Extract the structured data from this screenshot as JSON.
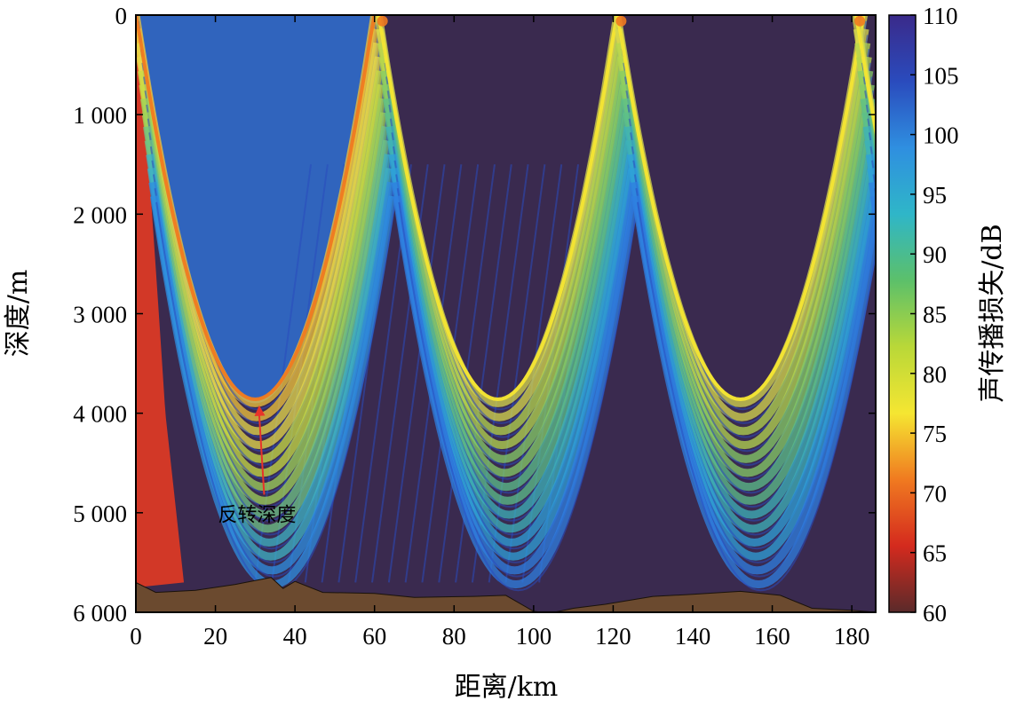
{
  "chart_data": {
    "type": "heatmap",
    "title": "",
    "xlabel": "距离/km",
    "ylabel": "深度/m",
    "colorbar_label": "声传播损失/dB",
    "xlim": [
      0,
      186
    ],
    "ylim": [
      6000,
      0
    ],
    "y_reversed": true,
    "x_ticks": [
      {
        "value": 0,
        "label": "0"
      },
      {
        "value": 20,
        "label": "20"
      },
      {
        "value": 40,
        "label": "40"
      },
      {
        "value": 60,
        "label": "60"
      },
      {
        "value": 80,
        "label": "80"
      },
      {
        "value": 100,
        "label": "100"
      },
      {
        "value": 120,
        "label": "120"
      },
      {
        "value": 140,
        "label": "140"
      },
      {
        "value": 160,
        "label": "160"
      },
      {
        "value": 180,
        "label": "180"
      }
    ],
    "y_ticks": [
      {
        "value": 0,
        "label": "0"
      },
      {
        "value": 1000,
        "label": "1 000"
      },
      {
        "value": 2000,
        "label": "2 000"
      },
      {
        "value": 3000,
        "label": "3 000"
      },
      {
        "value": 4000,
        "label": "4 000"
      },
      {
        "value": 5000,
        "label": "5 000"
      },
      {
        "value": 6000,
        "label": "6 000"
      }
    ],
    "colorbar": {
      "range": [
        60,
        110
      ],
      "ticks": [
        {
          "value": 60,
          "label": "60"
        },
        {
          "value": 65,
          "label": "65"
        },
        {
          "value": 70,
          "label": "70"
        },
        {
          "value": 75,
          "label": "75"
        },
        {
          "value": 80,
          "label": "80"
        },
        {
          "value": 85,
          "label": "85"
        },
        {
          "value": 90,
          "label": "90"
        },
        {
          "value": 95,
          "label": "95"
        },
        {
          "value": 100,
          "label": "100"
        },
        {
          "value": 105,
          "label": "105"
        },
        {
          "value": 110,
          "label": "110"
        }
      ],
      "colormap": [
        "#5a2a2a",
        "#d42a1e",
        "#f07a20",
        "#f5e632",
        "#b9d838",
        "#5cc06a",
        "#2fb6c8",
        "#2f8fe0",
        "#2a4bbd",
        "#3a2a8a"
      ]
    },
    "shadow_zone_color": "#3a2a4f",
    "seabed_color": "#6b4a2f",
    "convergence_zones": [
      {
        "surface_range_km": 0,
        "turning_range_km": 30,
        "turning_depth_m": 3900
      },
      {
        "surface_range_km": 61,
        "turning_range_km": 91,
        "turning_depth_m": 3900
      },
      {
        "surface_range_km": 121,
        "turning_range_km": 152,
        "turning_depth_m": 3900
      },
      {
        "surface_range_km": 181
      }
    ],
    "seabed_profile": [
      {
        "x": 0,
        "y": 5700
      },
      {
        "x": 5,
        "y": 5800
      },
      {
        "x": 15,
        "y": 5780
      },
      {
        "x": 25,
        "y": 5720
      },
      {
        "x": 34,
        "y": 5650
      },
      {
        "x": 37,
        "y": 5760
      },
      {
        "x": 40,
        "y": 5690
      },
      {
        "x": 47,
        "y": 5800
      },
      {
        "x": 60,
        "y": 5810
      },
      {
        "x": 70,
        "y": 5850
      },
      {
        "x": 85,
        "y": 5840
      },
      {
        "x": 93,
        "y": 5830
      },
      {
        "x": 100,
        "y": 5990
      },
      {
        "x": 104,
        "y": 6010
      },
      {
        "x": 110,
        "y": 5960
      },
      {
        "x": 118,
        "y": 5920
      },
      {
        "x": 130,
        "y": 5840
      },
      {
        "x": 140,
        "y": 5820
      },
      {
        "x": 152,
        "y": 5790
      },
      {
        "x": 162,
        "y": 5830
      },
      {
        "x": 170,
        "y": 5960
      },
      {
        "x": 180,
        "y": 5980
      },
      {
        "x": 186,
        "y": 6000
      }
    ],
    "annotations": [
      {
        "text": "反转深度",
        "x": 26,
        "y": 4800,
        "arrow_to_x": 31,
        "arrow_to_y": 3920,
        "color": "#e8332a"
      }
    ]
  }
}
